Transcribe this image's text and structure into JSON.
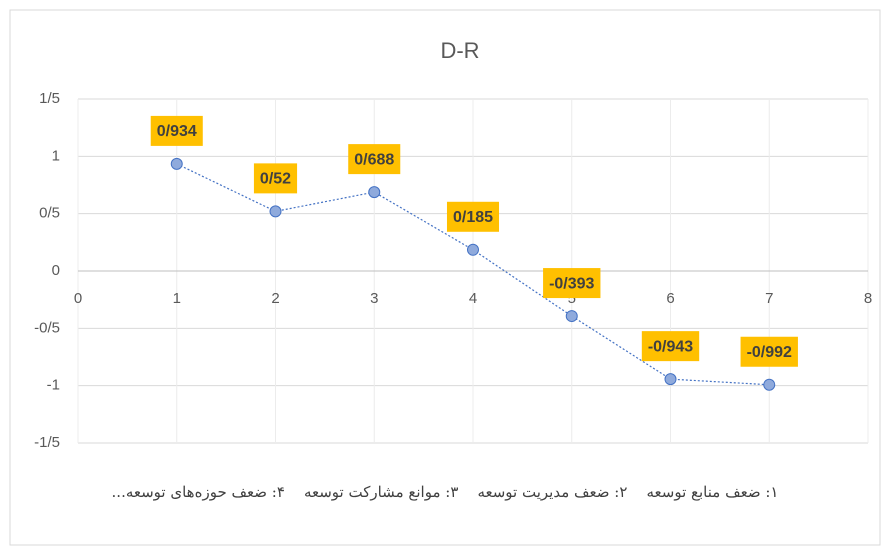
{
  "chart_data": {
    "type": "line",
    "title": "D-R",
    "x": [
      1,
      2,
      3,
      4,
      5,
      6,
      7
    ],
    "series": [
      {
        "name": "D-R",
        "color": "#4472c4",
        "marker_color": "#8faadc",
        "values": [
          0.934,
          0.52,
          0.688,
          0.185,
          -0.393,
          -0.943,
          -0.992
        ],
        "value_labels": [
          "0/934",
          "0/52",
          "0/688",
          "0/185",
          "-0/393",
          "-0/943",
          "-0/992"
        ],
        "label_color": "#ffc000"
      }
    ],
    "xlim": [
      0,
      8
    ],
    "xticks": [
      0,
      1,
      2,
      3,
      4,
      5,
      6,
      7,
      8
    ],
    "ylim": [
      -1.5,
      1.5
    ],
    "yticks": [
      {
        "value": -1.5,
        "label": "-1/5"
      },
      -1,
      {
        "value": -0.5,
        "label": "-0/5"
      },
      0,
      {
        "value": 0.5,
        "label": "0/5"
      },
      1,
      {
        "value": 1.5,
        "label": "1/5"
      }
    ],
    "grid": true,
    "note": "۱: ضعف منابع توسعه    ۲: ضعف مدیریت توسعه    ۳: موانع مشارکت توسعه    ۴: ضعف حوزه‌های توسعه..."
  }
}
